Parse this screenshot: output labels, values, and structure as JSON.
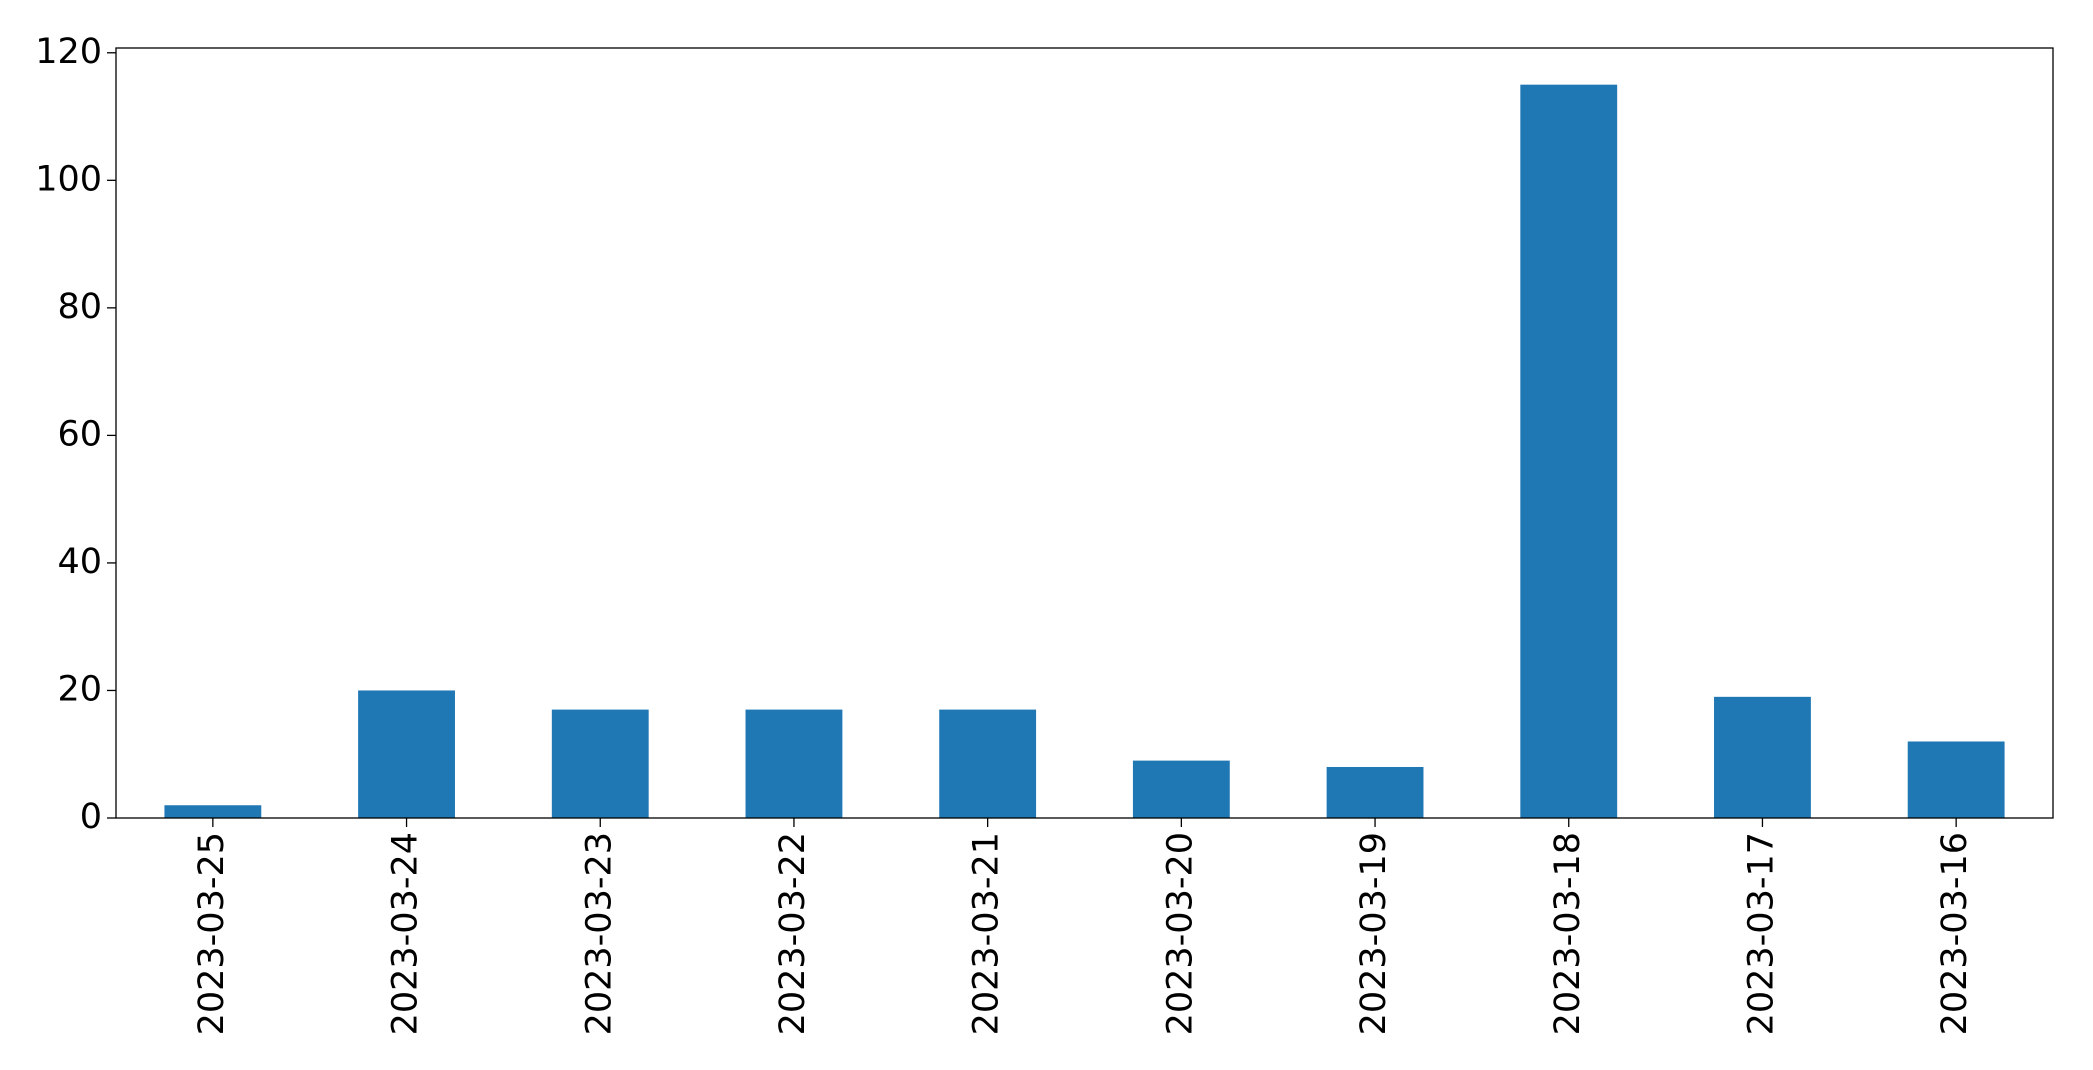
{
  "chart_data": {
    "type": "bar",
    "categories": [
      "2023-03-25",
      "2023-03-24",
      "2023-03-23",
      "2023-03-22",
      "2023-03-21",
      "2023-03-20",
      "2023-03-19",
      "2023-03-18",
      "2023-03-17",
      "2023-03-16"
    ],
    "values": [
      2,
      20,
      17,
      17,
      17,
      9,
      8,
      115,
      19,
      12
    ],
    "color": "#1f77b4",
    "ylim": [
      0,
      120.75
    ],
    "yticks": [
      0,
      20,
      40,
      60,
      80,
      100,
      120
    ],
    "grid": false
  }
}
